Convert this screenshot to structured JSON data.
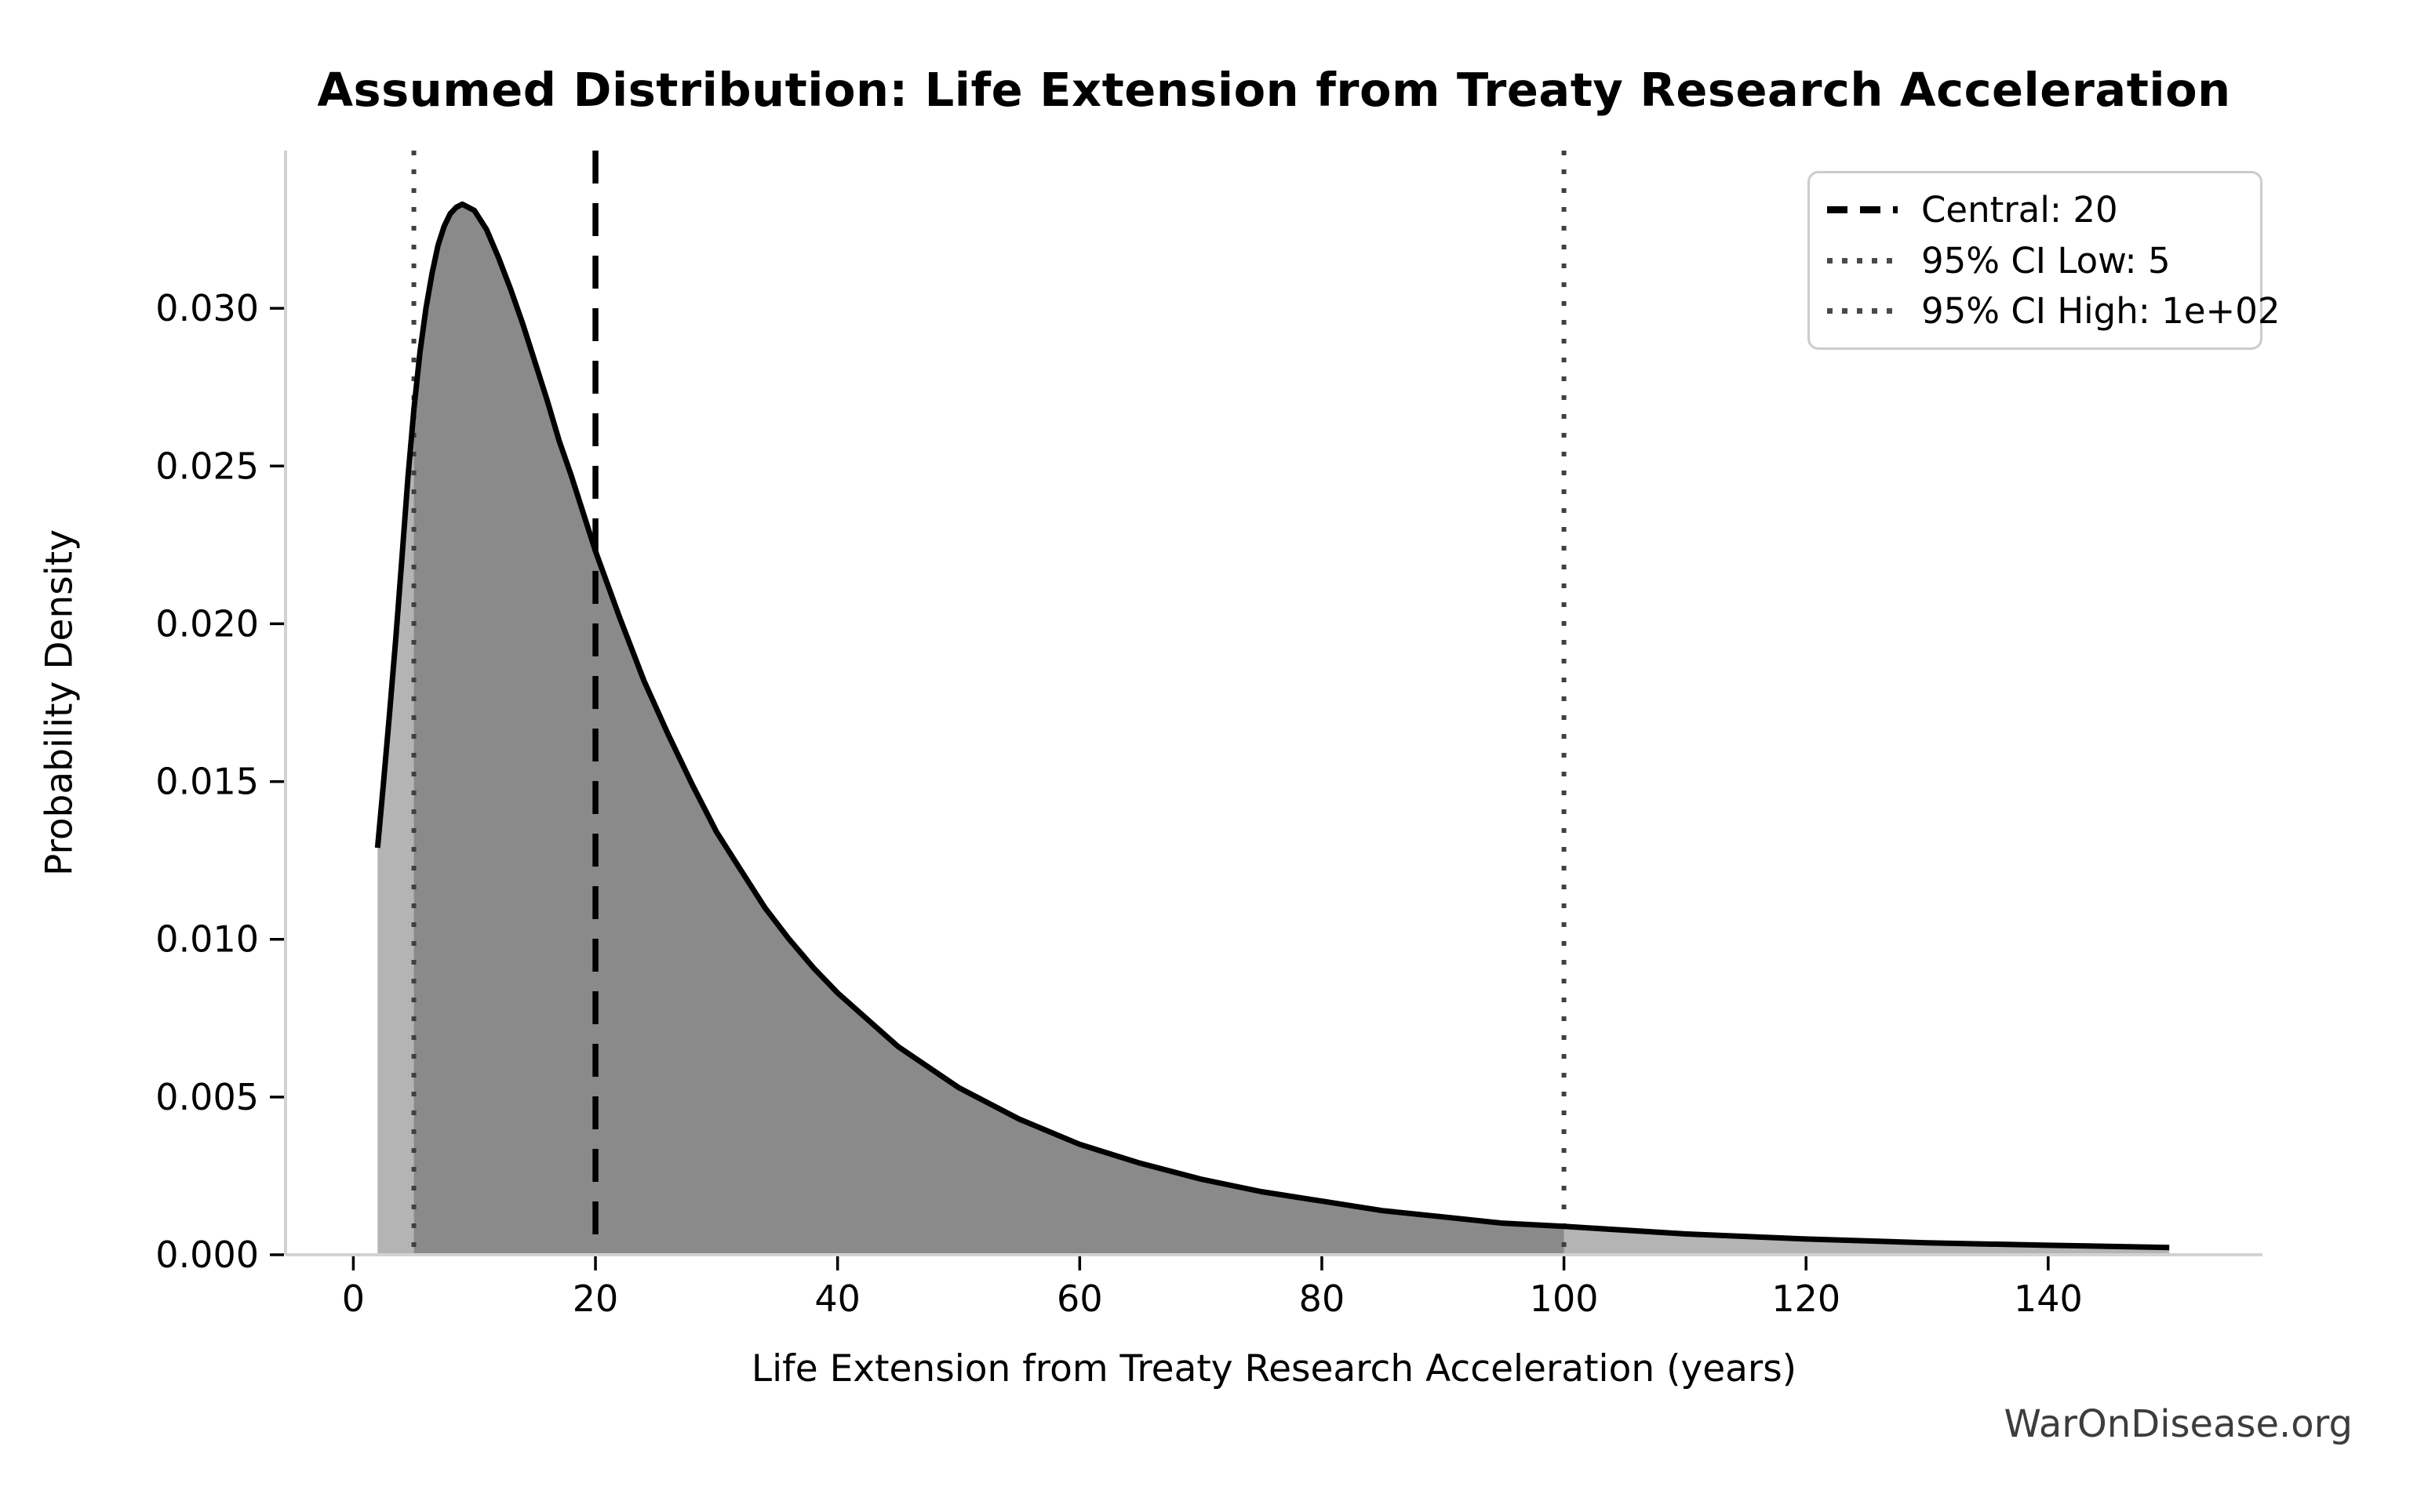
{
  "chart_data": {
    "type": "area",
    "title": "Assumed Distribution: Life Extension from Treaty Research Acceleration",
    "xlabel": "Life Extension from Treaty Research Acceleration (years)",
    "ylabel": "Probability Density",
    "watermark": "WarOnDisease.org",
    "distribution": "lognormal",
    "central": 20,
    "ci_low": 5,
    "ci_high": 100,
    "xlim": [
      -5.6,
      157.7
    ],
    "ylim": [
      0,
      0.035
    ],
    "grid": false,
    "legend_position": "upper right",
    "xticks": {
      "values": [
        0,
        20,
        40,
        60,
        80,
        100,
        120,
        140
      ],
      "labels": [
        "0",
        "20",
        "40",
        "60",
        "80",
        "100",
        "120",
        "140"
      ]
    },
    "yticks": {
      "values": [
        0,
        0.005,
        0.01,
        0.015,
        0.02,
        0.025,
        0.03
      ],
      "labels": [
        "0.000",
        "0.005",
        "0.010",
        "0.015",
        "0.020",
        "0.025",
        "0.030"
      ]
    },
    "vlines": [
      {
        "x": 20,
        "style": "dashed",
        "color": "#000000",
        "label": "Central: 20"
      },
      {
        "x": 5,
        "style": "dotted",
        "color": "#404040",
        "label": "95% CI Low: 5"
      },
      {
        "x": 100,
        "style": "dotted",
        "color": "#404040",
        "label": "95% CI High: 1e+02"
      }
    ],
    "legend": [
      {
        "label": "Central: 20",
        "style": "dashed",
        "color": "#000000"
      },
      {
        "label": "95% CI Low: 5",
        "style": "dotted",
        "color": "#4a4a4a"
      },
      {
        "label": "95% CI High: 1e+02",
        "style": "dotted",
        "color": "#4a4a4a"
      }
    ],
    "curve": {
      "x": [
        2,
        2.5,
        3,
        3.5,
        4,
        4.5,
        5,
        5.5,
        6,
        6.5,
        7,
        7.5,
        8,
        8.5,
        9,
        9.5,
        10,
        11,
        12,
        13,
        14,
        15,
        16,
        17,
        18,
        19,
        20,
        22,
        24,
        26,
        28,
        30,
        32,
        34,
        36,
        38,
        40,
        45,
        50,
        55,
        60,
        65,
        70,
        75,
        80,
        85,
        90,
        95,
        100,
        110,
        120,
        130,
        140,
        150
      ],
      "y": [
        0.0129,
        0.015,
        0.0172,
        0.0195,
        0.022,
        0.0246,
        0.0268,
        0.0286,
        0.03,
        0.0311,
        0.032,
        0.0326,
        0.033,
        0.0332,
        0.0333,
        0.0332,
        0.0331,
        0.0325,
        0.0316,
        0.0306,
        0.0295,
        0.0283,
        0.0271,
        0.0258,
        0.0247,
        0.0235,
        0.0223,
        0.0202,
        0.0182,
        0.0165,
        0.0149,
        0.0134,
        0.0122,
        0.011,
        0.01,
        0.0091,
        0.0083,
        0.0066,
        0.0053,
        0.0043,
        0.0035,
        0.0029,
        0.0024,
        0.002,
        0.0017,
        0.0014,
        0.0012,
        0.001,
        0.0009,
        0.00066,
        0.0005,
        0.00038,
        0.0003,
        0.00023
      ]
    },
    "fill_range": [
      2,
      150
    ],
    "ci_fill_range": [
      5,
      100
    ],
    "colors": {
      "curve": "#000000",
      "fill": "#b4b4b4",
      "fill_ci": "#8a8a8a",
      "spine": "#d2d2d2",
      "tick": "#000000",
      "tick_label": "#000000",
      "watermark": "#3d3d3d",
      "legend_border": "#cccccc"
    }
  }
}
